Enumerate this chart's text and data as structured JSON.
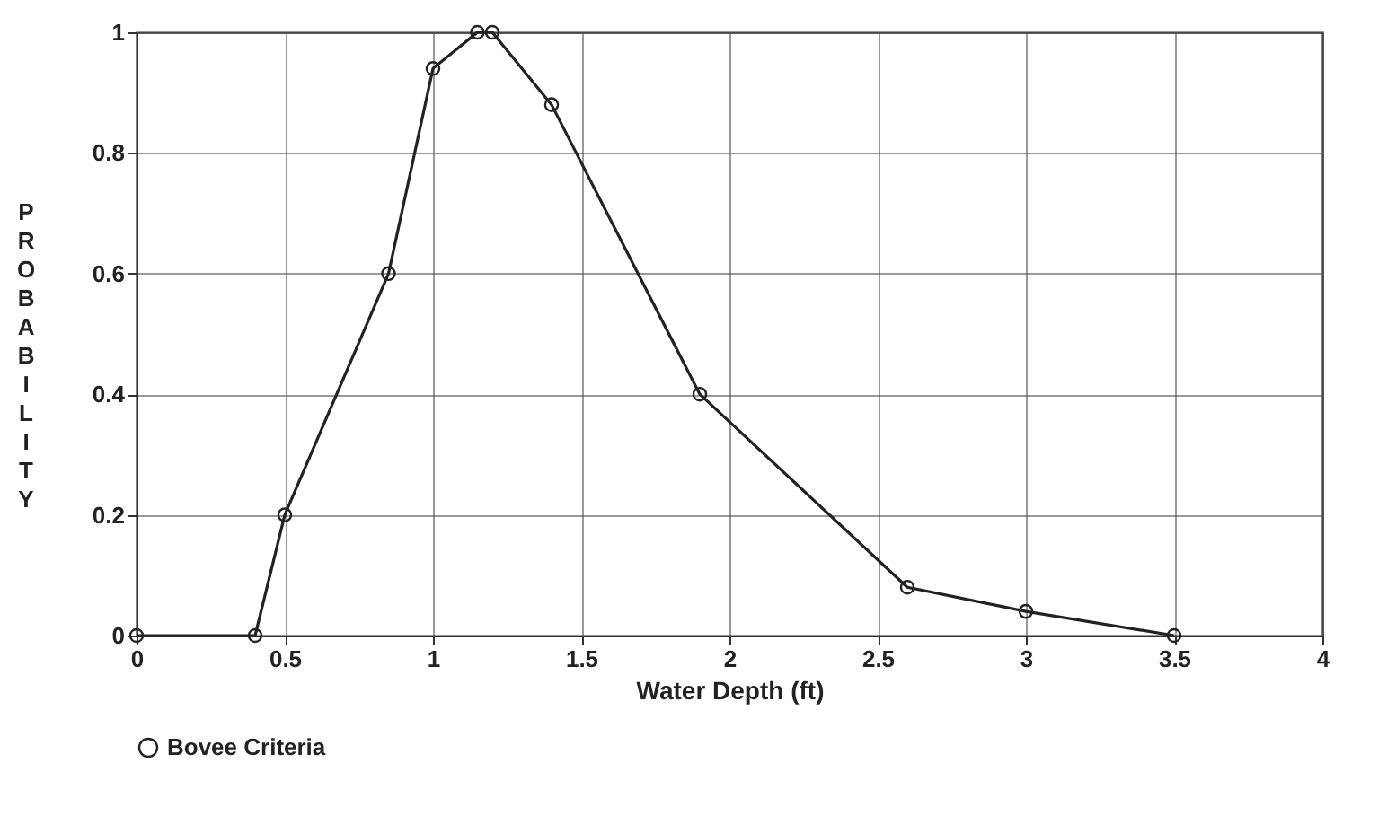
{
  "chart_data": {
    "type": "line",
    "xlabel": "Water Depth (ft)",
    "ylabel": "PROBABILITY",
    "x": [
      0,
      0.4,
      0.5,
      0.85,
      1.0,
      1.15,
      1.2,
      1.4,
      1.9,
      2.6,
      3.0,
      3.5
    ],
    "series": [
      {
        "name": "Bovee Criteria",
        "color": "#222222",
        "values": [
          0,
          0,
          0.2,
          0.6,
          0.94,
          1,
          1,
          0.88,
          0.4,
          0.08,
          0.04,
          0
        ]
      }
    ],
    "xlim": [
      0,
      4
    ],
    "xticks": [
      0,
      0.5,
      1,
      1.5,
      2,
      2.5,
      3,
      3.5,
      4
    ],
    "ylim": [
      0,
      1
    ],
    "yticks": [
      0,
      0.2,
      0.4,
      0.6,
      0.8,
      1
    ],
    "grid": true,
    "legend": "bottom",
    "marker": "circle",
    "line_style": "solid"
  }
}
